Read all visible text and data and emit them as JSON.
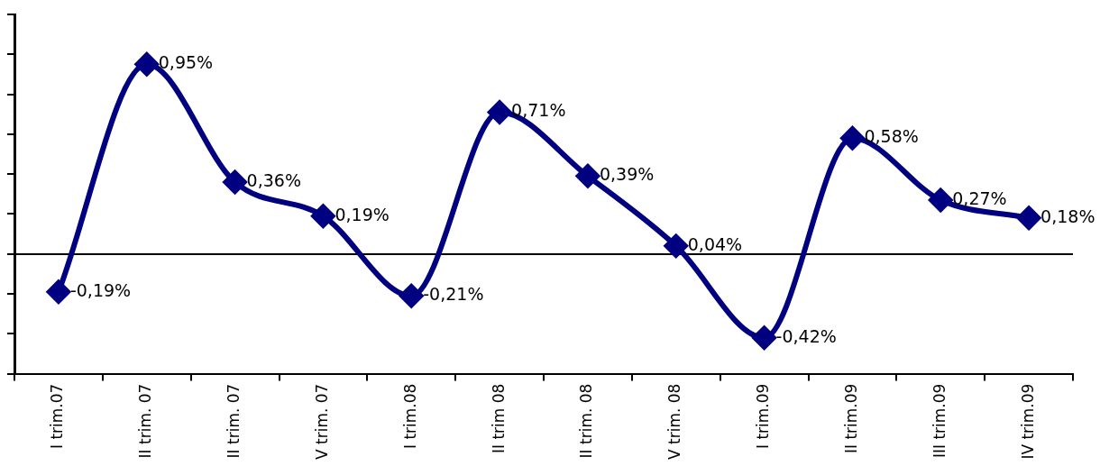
{
  "chart_data": {
    "type": "line",
    "categories": [
      "I trim.07",
      "II trim. 07",
      "II trim. 07",
      "V trim. 07",
      "I trim.08",
      "II trim 08",
      "II trim. 08",
      "V trim. 08",
      "I trim.09",
      "II trim.09",
      "III trim.09",
      "IV trim.09"
    ],
    "series": [
      {
        "color": "#000080",
        "values": [
          -0.19,
          0.95,
          0.36,
          0.19,
          -0.21,
          0.71,
          0.39,
          0.04,
          -0.42,
          0.58,
          0.27,
          0.18
        ],
        "value_labels": [
          "-0,19%",
          "0,95%",
          "0,36%",
          "0,19%",
          "-0,21%",
          "0,71%",
          "0,39%",
          "0,04%",
          "-0,42%",
          "0,58%",
          "0,27%",
          "0,18%"
        ]
      }
    ],
    "ylim": [
      -0.6,
      1.2
    ],
    "yticks": [
      {
        "value": -0.6,
        "label": null
      },
      {
        "value": -0.4,
        "label": null
      },
      {
        "value": -0.2,
        "label": null
      },
      {
        "value": 0,
        "label": null
      },
      {
        "value": 0.2,
        "label": null
      },
      {
        "value": 0.4,
        "label": null
      },
      {
        "value": 0.6,
        "label": null
      },
      {
        "value": 0.8,
        "label": null
      },
      {
        "value": 1,
        "label": null
      },
      {
        "value": 1.2,
        "label": null
      }
    ],
    "tick_labels": "x",
    "marker": "diamond",
    "line_style": "solid",
    "grid": false,
    "legend": false
  }
}
